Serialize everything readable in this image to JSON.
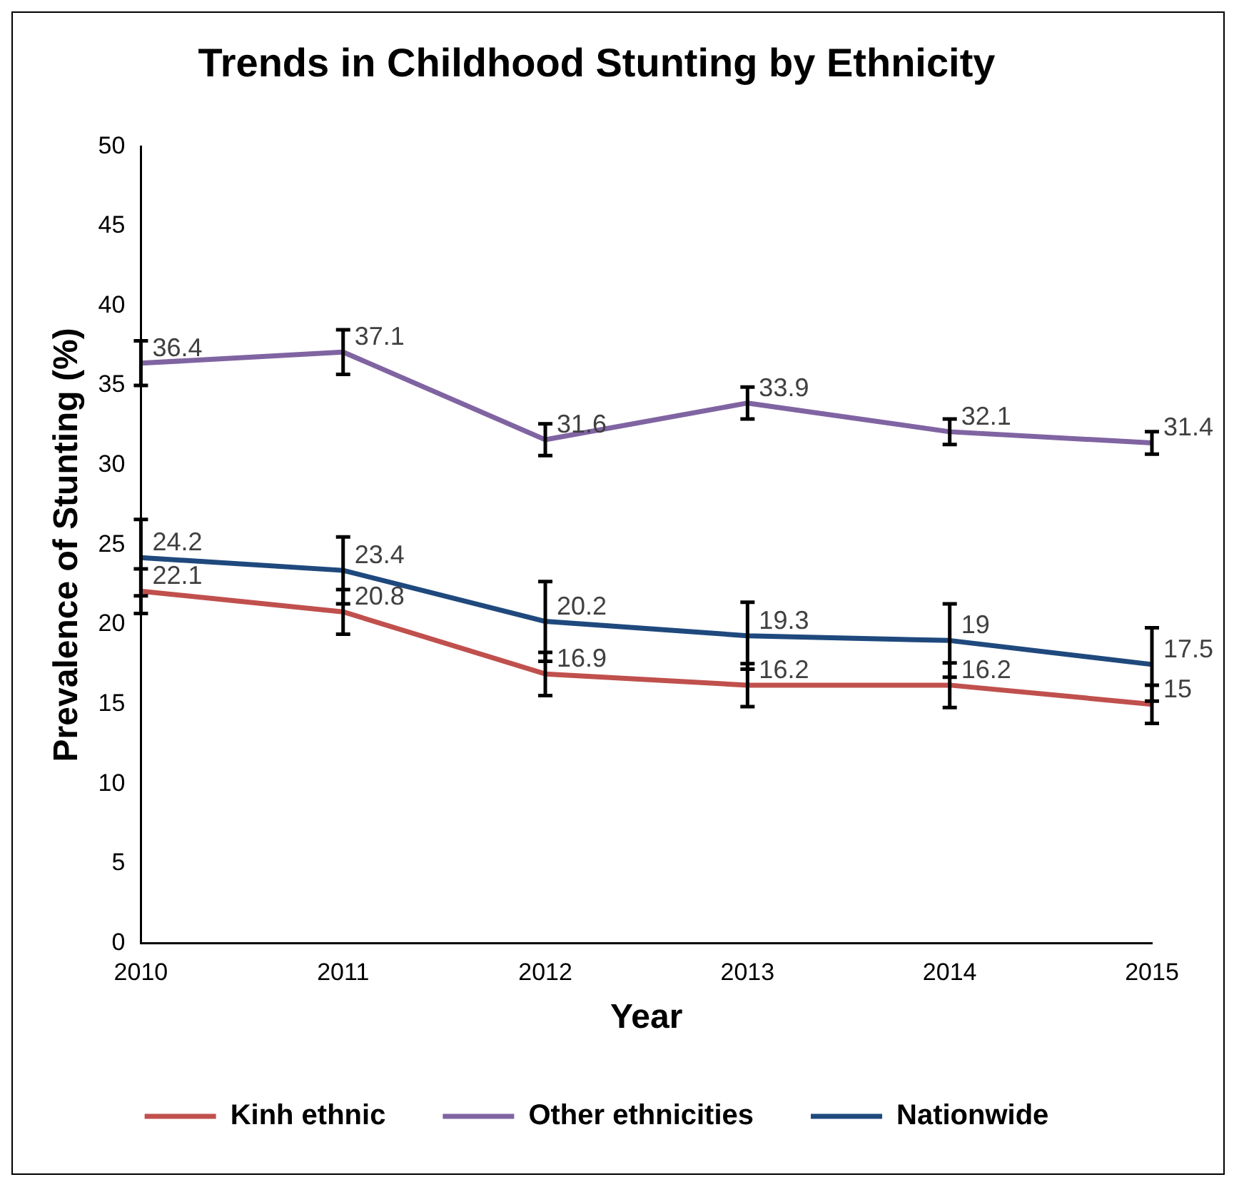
{
  "chart_data": {
    "type": "line",
    "title": "Trends in Childhood Stunting by Ethnicity",
    "xlabel": "Year",
    "ylabel": "Prevalence of Stunting (%)",
    "categories": [
      "2010",
      "2011",
      "2012",
      "2013",
      "2014",
      "2015"
    ],
    "series": [
      {
        "name": "Kinh ethnic",
        "color": "#c0504d",
        "values": [
          22.1,
          20.8,
          16.9,
          16.2,
          16.2,
          15
        ],
        "errors": [
          1.4,
          1.4,
          1.35,
          1.35,
          1.4,
          1.2
        ]
      },
      {
        "name": "Other ethnicities",
        "color": "#8064a2",
        "values": [
          36.4,
          37.1,
          31.6,
          33.9,
          32.1,
          31.4
        ],
        "errors": [
          1.4,
          1.4,
          1.0,
          1.0,
          0.8,
          0.7
        ]
      },
      {
        "name": "Nationwide",
        "color": "#1f497d",
        "values": [
          24.2,
          23.4,
          20.2,
          19.3,
          19,
          17.5
        ],
        "errors": [
          2.4,
          2.1,
          2.5,
          2.1,
          2.3,
          2.3
        ]
      }
    ],
    "ylim": [
      0,
      50
    ],
    "yticks": [
      0,
      5,
      10,
      15,
      20,
      25,
      30,
      35,
      40,
      45,
      50
    ],
    "grid": false,
    "legend": "bottom",
    "marker": "none",
    "line_style": "solid",
    "data_labels": true
  }
}
